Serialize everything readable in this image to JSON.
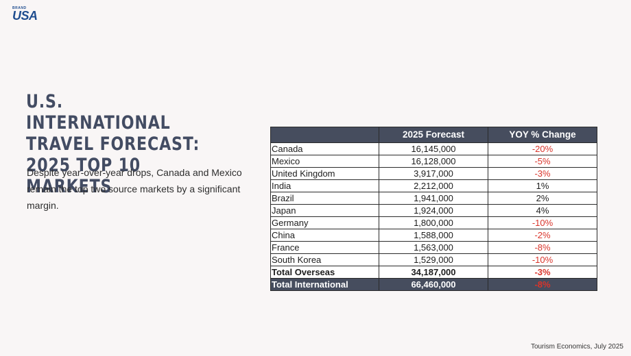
{
  "logo": {
    "small": "BRAND",
    "big": "USA"
  },
  "title_lines": [
    "U.S. INTERNATIONAL",
    "TRAVEL FORECAST:",
    "2025 TOP 10 MARKETS"
  ],
  "description": "Despite year-over-year drops, Canada and Mexico remain the top two source markets by a significant margin.",
  "table": {
    "headers": [
      "",
      "2025 Forecast",
      "YOY % Change"
    ],
    "rows": [
      {
        "country": "Canada",
        "forecast": "16,145,000",
        "change": "-20%"
      },
      {
        "country": "Mexico",
        "forecast": "16,128,000",
        "change": "-5%"
      },
      {
        "country": "United Kingdom",
        "forecast": "3,917,000",
        "change": "-3%"
      },
      {
        "country": "India",
        "forecast": "2,212,000",
        "change": "1%"
      },
      {
        "country": "Brazil",
        "forecast": "1,941,000",
        "change": "2%"
      },
      {
        "country": "Japan",
        "forecast": "1,924,000",
        "change": "4%"
      },
      {
        "country": "Germany",
        "forecast": "1,800,000",
        "change": "-10%"
      },
      {
        "country": "China",
        "forecast": "1,588,000",
        "change": "-2%"
      },
      {
        "country": "France",
        "forecast": "1,563,000",
        "change": "-8%"
      },
      {
        "country": "South Korea",
        "forecast": "1,529,000",
        "change": "-10%"
      }
    ],
    "total_overseas": {
      "label": "Total Overseas",
      "forecast": "34,187,000",
      "change": "-3%"
    },
    "total_international": {
      "label": "Total International",
      "forecast": "66,460,000",
      "change": "-8%"
    }
  },
  "source": "Tourism Economics, July 2025",
  "colors": {
    "header_bg": "#464d5e",
    "negative": "#d9342b",
    "title": "#434c63",
    "logo": "#1f4d8f",
    "background": "#f9f6f6"
  }
}
